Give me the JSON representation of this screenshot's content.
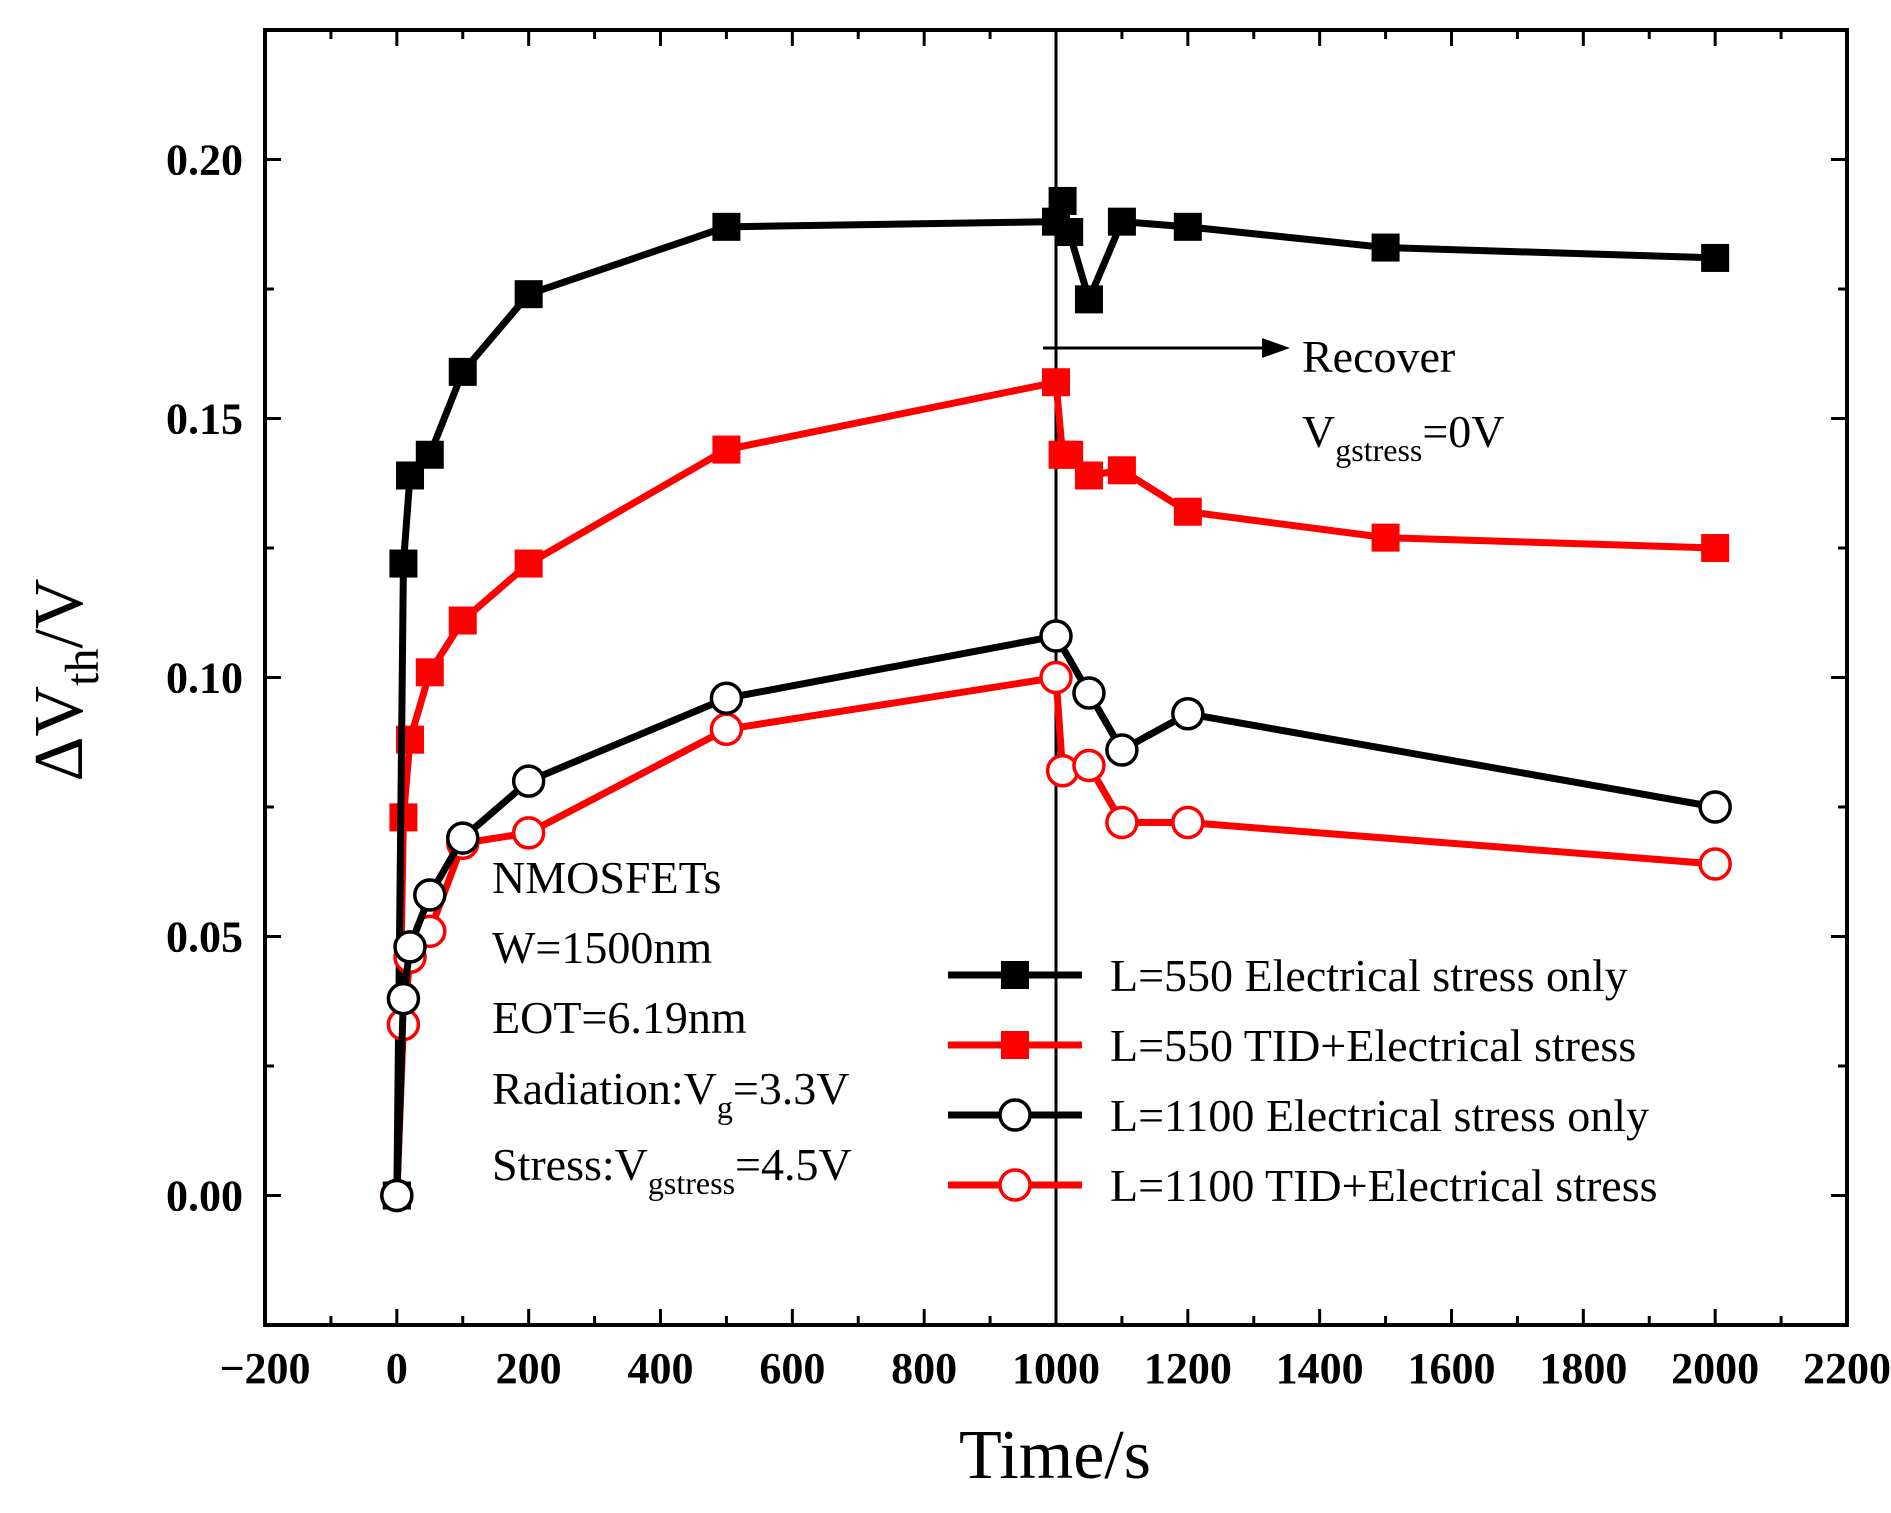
{
  "chart_data": {
    "type": "line",
    "xlabel": "Time/s",
    "ylabel": {
      "prefix": "ΔV",
      "sub": "th",
      "suffix": "/V"
    },
    "xlim": [
      -200,
      2200
    ],
    "ylim": [
      -0.025,
      0.225
    ],
    "x_ticks": [
      -200,
      0,
      200,
      400,
      600,
      800,
      1000,
      1200,
      1400,
      1600,
      1800,
      2000,
      2200
    ],
    "x_tick_labels": [
      "−200",
      "0",
      "200",
      "400",
      "600",
      "800",
      "1000",
      "1200",
      "1400",
      "1600",
      "1800",
      "2000",
      "2200"
    ],
    "y_ticks": [
      0.0,
      0.05,
      0.1,
      0.15,
      0.2
    ],
    "y_tick_labels": [
      "0.00",
      "0.05",
      "0.10",
      "0.15",
      "0.20"
    ],
    "grid": false,
    "legend_position": "bottom-right",
    "vertical_line_x": 1000,
    "series": [
      {
        "name": "L=550 Electrical stress only",
        "color": "#000000",
        "marker": "filled-square",
        "x": [
          0,
          10,
          20,
          50,
          100,
          200,
          500,
          1000,
          1010,
          1020,
          1050,
          1100,
          1200,
          1500,
          2000
        ],
        "y": [
          0.0,
          0.122,
          0.139,
          0.143,
          0.159,
          0.174,
          0.187,
          0.188,
          0.192,
          0.186,
          0.173,
          0.188,
          0.187,
          0.183,
          0.181
        ]
      },
      {
        "name": "L=550 TID+Electrical stress",
        "color": "#ff0000",
        "marker": "filled-square",
        "x": [
          0,
          10,
          20,
          50,
          100,
          200,
          500,
          1000,
          1010,
          1020,
          1050,
          1100,
          1200,
          1500,
          2000
        ],
        "y": [
          0.0,
          0.073,
          0.088,
          0.101,
          0.111,
          0.122,
          0.144,
          0.157,
          0.143,
          0.143,
          0.139,
          0.14,
          0.132,
          0.127,
          0.125
        ]
      },
      {
        "name": "L=1100 Electrical stress only",
        "color": "#000000",
        "marker": "open-circle",
        "x": [
          0,
          10,
          20,
          50,
          100,
          200,
          500,
          1000,
          1050,
          1100,
          1200,
          2000
        ],
        "y": [
          0.0,
          0.038,
          0.048,
          0.058,
          0.069,
          0.08,
          0.096,
          0.108,
          0.097,
          0.086,
          0.093,
          0.075
        ]
      },
      {
        "name": "L=1100 TID+Electrical stress",
        "color": "#ff0000",
        "marker": "open-circle",
        "x": [
          0,
          10,
          20,
          50,
          100,
          200,
          500,
          1000,
          1010,
          1050,
          1100,
          1200,
          2000
        ],
        "y": [
          0.0,
          0.033,
          0.046,
          0.051,
          0.068,
          0.07,
          0.09,
          0.1,
          0.082,
          0.083,
          0.072,
          0.072,
          0.064
        ]
      }
    ],
    "annotations": {
      "recover": {
        "line1": "Recover",
        "v": "V",
        "sub": "gstress",
        "value": "=0V"
      },
      "device_info": {
        "line1": "NMOSFETs",
        "line2": "W=1500nm",
        "line3": "EOT=6.19nm",
        "line4": {
          "prefix": "Radiation:V",
          "sub": "g",
          "suffix": "=3.3V"
        },
        "line5": {
          "prefix": "Stress:V",
          "sub": "gstress",
          "suffix": "=4.5V"
        }
      }
    }
  }
}
